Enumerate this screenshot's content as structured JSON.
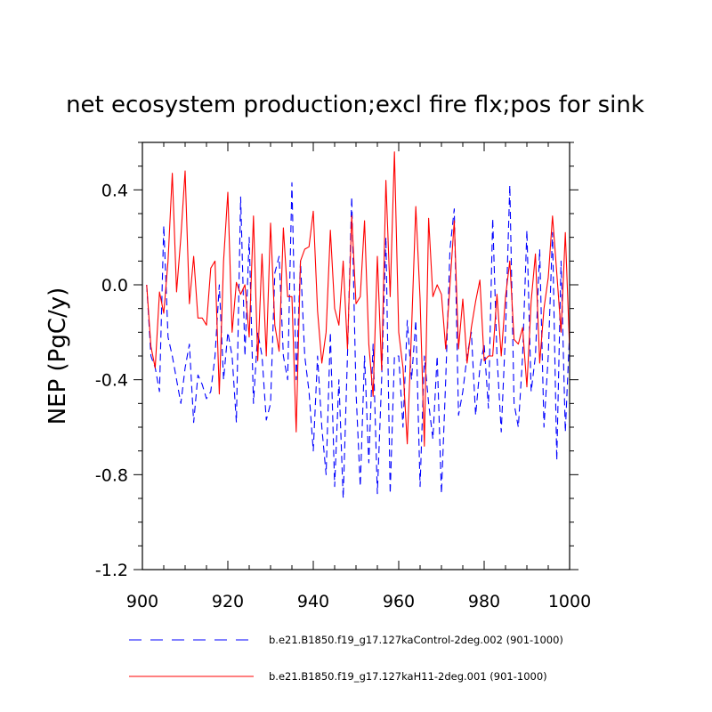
{
  "chart_data": {
    "type": "line",
    "title": "net ecosystem production;excl fire flx;pos for sink",
    "xlabel": "",
    "ylabel": "NEP  (PgC/y)",
    "xlim": [
      900,
      1000
    ],
    "ylim": [
      -1.2,
      0.6
    ],
    "xticks": [
      900,
      920,
      940,
      960,
      980,
      1000
    ],
    "yticks": [
      -1.2,
      -0.8,
      -0.4,
      0.0,
      0.4
    ],
    "xtick_labels": [
      "900",
      "920",
      "940",
      "960",
      "980",
      "1000"
    ],
    "ytick_labels": [
      "-1.2",
      "-0.8",
      "-0.4",
      "0.0",
      "0.4"
    ],
    "grid": false,
    "legend_position": "bottom",
    "x_start": 901,
    "x_step": 1,
    "series": [
      {
        "name": "b.e21.B1850.f19_g17.127kaControl-2deg.002 (901-1000)",
        "color": "#0000ff",
        "dash": "dashed",
        "values": [
          0.0,
          -0.3,
          -0.35,
          -0.45,
          0.25,
          -0.22,
          -0.3,
          -0.4,
          -0.5,
          -0.35,
          -0.25,
          -0.58,
          -0.38,
          -0.42,
          -0.48,
          -0.45,
          -0.3,
          0.0,
          -0.4,
          -0.2,
          -0.3,
          -0.58,
          0.37,
          -0.3,
          0.2,
          -0.5,
          -0.2,
          -0.3,
          -0.57,
          -0.5,
          0.05,
          0.12,
          -0.3,
          -0.4,
          0.43,
          -0.4,
          0.1,
          -0.3,
          -0.45,
          -0.7,
          -0.3,
          -0.6,
          -0.8,
          -0.2,
          -0.85,
          -0.4,
          -0.9,
          -0.3,
          0.37,
          -0.45,
          -0.85,
          -0.3,
          -0.75,
          -0.25,
          -0.88,
          -0.4,
          0.2,
          -0.88,
          -0.3,
          -0.3,
          -0.6,
          -0.15,
          -0.4,
          -0.15,
          -0.85,
          -0.3,
          -0.5,
          -0.65,
          -0.3,
          -0.88,
          -0.4,
          0.15,
          0.32,
          -0.55,
          -0.45,
          -0.3,
          -0.2,
          -0.55,
          -0.35,
          -0.25,
          -0.52,
          0.28,
          -0.3,
          -0.62,
          -0.2,
          0.42,
          -0.5,
          -0.6,
          -0.3,
          0.23,
          -0.45,
          -0.3,
          0.15,
          -0.6,
          -0.3,
          0.22,
          -0.74,
          0.1,
          -0.62,
          -0.2
        ]
      },
      {
        "name": "b.e21.B1850.f19_g17.127kaH11-2deg.001 (901-1000)",
        "color": "#ff0000",
        "dash": "solid",
        "values": [
          0.0,
          -0.26,
          -0.35,
          -0.03,
          -0.12,
          0.1,
          0.47,
          -0.03,
          0.2,
          0.48,
          -0.08,
          0.12,
          -0.14,
          -0.14,
          -0.17,
          0.07,
          0.1,
          -0.46,
          0.1,
          0.39,
          -0.2,
          0.01,
          -0.04,
          0.0,
          -0.22,
          0.29,
          -0.32,
          0.13,
          -0.3,
          0.26,
          -0.17,
          -0.28,
          0.24,
          -0.05,
          -0.05,
          -0.62,
          0.1,
          0.15,
          0.16,
          0.31,
          -0.11,
          -0.33,
          -0.2,
          0.23,
          -0.1,
          -0.17,
          0.1,
          -0.27,
          0.29,
          -0.08,
          -0.05,
          0.27,
          -0.25,
          -0.47,
          0.12,
          -0.36,
          0.44,
          -0.05,
          0.56,
          -0.2,
          -0.35,
          -0.67,
          -0.19,
          0.33,
          -0.06,
          -0.68,
          0.28,
          -0.05,
          0.0,
          -0.04,
          -0.27,
          0.0,
          0.27,
          -0.27,
          -0.06,
          -0.33,
          -0.18,
          -0.07,
          0.02,
          -0.32,
          -0.3,
          -0.3,
          -0.04,
          -0.3,
          -0.05,
          0.1,
          -0.23,
          -0.25,
          -0.18,
          -0.43,
          -0.07,
          0.13,
          -0.33,
          -0.1,
          0.03,
          0.29,
          0.05,
          -0.2,
          0.22,
          -0.27
        ]
      }
    ]
  }
}
